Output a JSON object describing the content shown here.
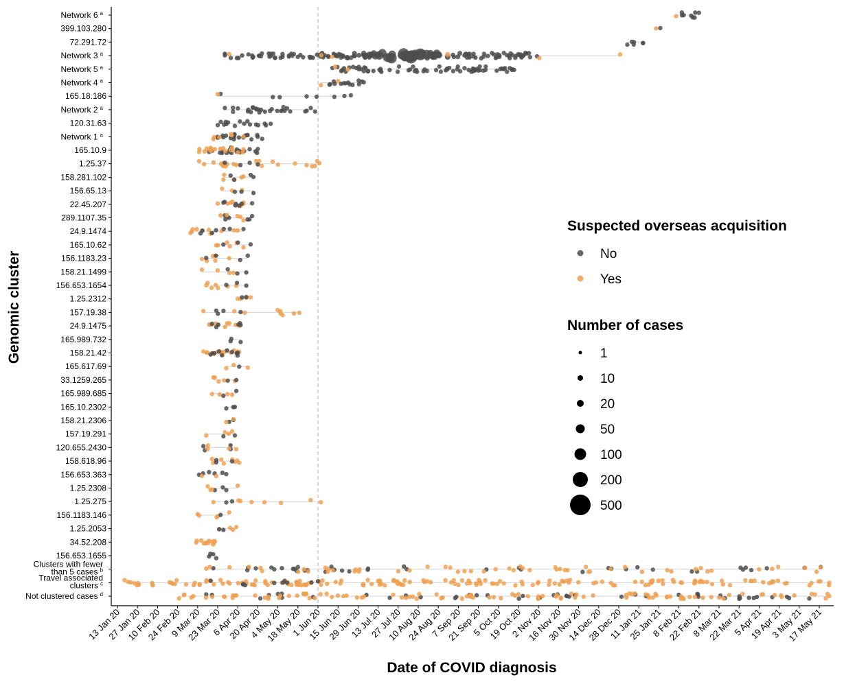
{
  "chart_data": {
    "type": "scatter",
    "xlabel": "Date of COVID diagnosis",
    "ylabel": "Genomic cluster",
    "x_range": [
      "2020-01-06",
      "2021-05-24"
    ],
    "x_tick_labels": [
      "13 Jan 20",
      "27 Jan 20",
      "10 Feb 20",
      "24 Feb 20",
      "9 Mar 20",
      "23 Mar 20",
      "6 Apr 20",
      "20 Apr 20",
      "4 May 20",
      "18 May 20",
      "1 Jun 20",
      "15 Jun 20",
      "29 Jun 20",
      "13 Jul 20",
      "27 Jul 20",
      "10 Aug 20",
      "24 Aug 20",
      "7 Sep 20",
      "21 Sep 20",
      "5 Oct 20",
      "19 Oct 20",
      "2 Nov 20",
      "16 Nov 20",
      "30 Nov 20",
      "14 Dec 20",
      "28 Dec 20",
      "11 Jan 21",
      "25 Jan 21",
      "8 Feb 21",
      "22 Feb 21",
      "8 Mar 21",
      "22 Mar 21",
      "5 Apr 21",
      "19 Apr 21",
      "3 May 21",
      "17 May 21"
    ],
    "reference_line_date": "2020-06-01",
    "grid": false,
    "legend_placement": "right",
    "colors": {
      "No": "#4d4d4d",
      "Yes": "#f0a050"
    },
    "legend": {
      "color_title": "Suspected overseas acquisition",
      "color_items": [
        "No",
        "Yes"
      ],
      "size_title": "Number of cases",
      "size_items": [
        1,
        10,
        20,
        50,
        100,
        200,
        500
      ]
    },
    "clusters": [
      {
        "label": "Network 6",
        "sup": "a",
        "groups": [
          {
            "acq": "No",
            "n": 8,
            "from": "2021-02-10",
            "to": "2021-02-22"
          },
          {
            "acq": "Yes",
            "n": 1,
            "from": "2021-02-06",
            "to": "2021-02-06"
          }
        ]
      },
      {
        "label": "399.103.280",
        "groups": [
          {
            "acq": "Yes",
            "n": 1,
            "from": "2021-01-23",
            "to": "2021-01-23"
          },
          {
            "acq": "No",
            "n": 1,
            "from": "2021-01-26",
            "to": "2021-01-26"
          }
        ]
      },
      {
        "label": "72.291.72",
        "groups": [
          {
            "acq": "No",
            "n": 6,
            "from": "2021-01-03",
            "to": "2021-01-14"
          }
        ]
      },
      {
        "label": "Network 3",
        "sup": "a",
        "groups": [
          {
            "acq": "No",
            "n": 160,
            "from": "2020-03-28",
            "to": "2020-11-01"
          },
          {
            "acq": "Yes",
            "n": 6,
            "from": "2020-03-31",
            "to": "2020-12-29"
          }
        ]
      },
      {
        "label": "Network 5",
        "sup": "a",
        "groups": [
          {
            "acq": "No",
            "n": 70,
            "from": "2020-06-11",
            "to": "2020-10-16"
          },
          {
            "acq": "Yes",
            "n": 2,
            "from": "2020-06-13",
            "to": "2020-06-22"
          }
        ]
      },
      {
        "label": "Network 4",
        "sup": "a",
        "groups": [
          {
            "acq": "No",
            "n": 14,
            "from": "2020-06-09",
            "to": "2020-07-03"
          },
          {
            "acq": "Yes",
            "n": 2,
            "from": "2020-06-03",
            "to": "2020-06-15"
          }
        ]
      },
      {
        "label": "165.18.186",
        "groups": [
          {
            "acq": "No",
            "n": 8,
            "from": "2020-03-25",
            "to": "2020-06-24"
          },
          {
            "acq": "Yes",
            "n": 1,
            "from": "2020-03-23",
            "to": "2020-03-23"
          }
        ]
      },
      {
        "label": "Network 2",
        "sup": "a",
        "groups": [
          {
            "acq": "No",
            "n": 28,
            "from": "2020-03-28",
            "to": "2020-05-30"
          }
        ]
      },
      {
        "label": "120.31.63",
        "groups": [
          {
            "acq": "No",
            "n": 16,
            "from": "2020-03-23",
            "to": "2020-04-29"
          }
        ]
      },
      {
        "label": "Network 1",
        "sup": "a",
        "groups": [
          {
            "acq": "No",
            "n": 22,
            "from": "2020-03-23",
            "to": "2020-04-23"
          },
          {
            "acq": "Yes",
            "n": 6,
            "from": "2020-03-20",
            "to": "2020-04-10"
          }
        ]
      },
      {
        "label": "165.10.9",
        "groups": [
          {
            "acq": "No",
            "n": 20,
            "from": "2020-03-17",
            "to": "2020-04-20"
          },
          {
            "acq": "Yes",
            "n": 18,
            "from": "2020-03-10",
            "to": "2020-04-10"
          }
        ]
      },
      {
        "label": "1.25.37",
        "groups": [
          {
            "acq": "Yes",
            "n": 22,
            "from": "2020-03-10",
            "to": "2020-06-02"
          },
          {
            "acq": "No",
            "n": 4,
            "from": "2020-03-28",
            "to": "2020-04-20"
          }
        ]
      },
      {
        "label": "158.281.102",
        "groups": [
          {
            "acq": "Yes",
            "n": 5,
            "from": "2020-03-27",
            "to": "2020-04-10"
          },
          {
            "acq": "No",
            "n": 4,
            "from": "2020-04-01",
            "to": "2020-04-17"
          }
        ]
      },
      {
        "label": "156.65.13",
        "groups": [
          {
            "acq": "Yes",
            "n": 3,
            "from": "2020-03-26",
            "to": "2020-04-09"
          },
          {
            "acq": "No",
            "n": 3,
            "from": "2020-04-04",
            "to": "2020-04-17"
          }
        ]
      },
      {
        "label": "22.45.207",
        "groups": [
          {
            "acq": "Yes",
            "n": 10,
            "from": "2020-03-23",
            "to": "2020-04-10"
          },
          {
            "acq": "No",
            "n": 7,
            "from": "2020-03-27",
            "to": "2020-04-16"
          }
        ]
      },
      {
        "label": "289.1107.35",
        "groups": [
          {
            "acq": "No",
            "n": 7,
            "from": "2020-03-28",
            "to": "2020-04-16"
          },
          {
            "acq": "Yes",
            "n": 5,
            "from": "2020-03-25",
            "to": "2020-04-10"
          }
        ]
      },
      {
        "label": "24.9.1474",
        "groups": [
          {
            "acq": "Yes",
            "n": 10,
            "from": "2020-03-04",
            "to": "2020-04-06"
          },
          {
            "acq": "No",
            "n": 7,
            "from": "2020-03-11",
            "to": "2020-04-10"
          }
        ]
      },
      {
        "label": "165.10.62",
        "groups": [
          {
            "acq": "Yes",
            "n": 6,
            "from": "2020-03-22",
            "to": "2020-04-10"
          },
          {
            "acq": "No",
            "n": 3,
            "from": "2020-03-27",
            "to": "2020-04-15"
          }
        ]
      },
      {
        "label": "156.1183.23",
        "groups": [
          {
            "acq": "Yes",
            "n": 6,
            "from": "2020-03-12",
            "to": "2020-03-31"
          },
          {
            "acq": "No",
            "n": 4,
            "from": "2020-03-15",
            "to": "2020-04-13"
          }
        ]
      },
      {
        "label": "158.21.1499",
        "groups": [
          {
            "acq": "Yes",
            "n": 4,
            "from": "2020-03-12",
            "to": "2020-04-03"
          },
          {
            "acq": "No",
            "n": 3,
            "from": "2020-03-30",
            "to": "2020-04-12"
          }
        ]
      },
      {
        "label": "156.653.1654",
        "groups": [
          {
            "acq": "Yes",
            "n": 7,
            "from": "2020-03-15",
            "to": "2020-04-05"
          },
          {
            "acq": "No",
            "n": 3,
            "from": "2020-03-29",
            "to": "2020-04-12"
          }
        ]
      },
      {
        "label": "1.25.2312",
        "groups": [
          {
            "acq": "Yes",
            "n": 4,
            "from": "2020-04-06",
            "to": "2020-04-15"
          },
          {
            "acq": "No",
            "n": 2,
            "from": "2020-04-09",
            "to": "2020-04-12"
          }
        ]
      },
      {
        "label": "157.19.38",
        "groups": [
          {
            "acq": "Yes",
            "n": 9,
            "from": "2020-03-13",
            "to": "2020-05-19"
          },
          {
            "acq": "No",
            "n": 4,
            "from": "2020-03-22",
            "to": "2020-04-08"
          }
        ]
      },
      {
        "label": "24.9.1475",
        "groups": [
          {
            "acq": "Yes",
            "n": 9,
            "from": "2020-03-17",
            "to": "2020-04-07"
          },
          {
            "acq": "No",
            "n": 6,
            "from": "2020-03-19",
            "to": "2020-04-08"
          }
        ]
      },
      {
        "label": "165.989.732",
        "groups": [
          {
            "acq": "No",
            "n": 3,
            "from": "2020-04-01",
            "to": "2020-04-08"
          }
        ]
      },
      {
        "label": "158.21.42",
        "groups": [
          {
            "acq": "Yes",
            "n": 16,
            "from": "2020-03-13",
            "to": "2020-04-07"
          },
          {
            "acq": "No",
            "n": 10,
            "from": "2020-03-18",
            "to": "2020-04-06"
          }
        ]
      },
      {
        "label": "165.617.69",
        "groups": [
          {
            "acq": "Yes",
            "n": 3,
            "from": "2020-03-29",
            "to": "2020-04-13"
          },
          {
            "acq": "No",
            "n": 1,
            "from": "2020-04-07",
            "to": "2020-04-07"
          }
        ]
      },
      {
        "label": "33.1259.265",
        "groups": [
          {
            "acq": "Yes",
            "n": 5,
            "from": "2020-03-20",
            "to": "2020-04-04"
          },
          {
            "acq": "No",
            "n": 2,
            "from": "2020-03-30",
            "to": "2020-04-05"
          }
        ]
      },
      {
        "label": "165.989.685",
        "groups": [
          {
            "acq": "Yes",
            "n": 4,
            "from": "2020-03-19",
            "to": "2020-04-02"
          },
          {
            "acq": "No",
            "n": 2,
            "from": "2020-03-27",
            "to": "2020-04-05"
          }
        ]
      },
      {
        "label": "165.10.2302",
        "groups": [
          {
            "acq": "No",
            "n": 3,
            "from": "2020-03-29",
            "to": "2020-04-04"
          }
        ]
      },
      {
        "label": "158.21.2306",
        "groups": [
          {
            "acq": "No",
            "n": 2,
            "from": "2020-03-31",
            "to": "2020-04-03"
          },
          {
            "acq": "Yes",
            "n": 2,
            "from": "2020-03-29",
            "to": "2020-04-03"
          }
        ]
      },
      {
        "label": "157.19.291",
        "groups": [
          {
            "acq": "Yes",
            "n": 4,
            "from": "2020-03-15",
            "to": "2020-04-02"
          },
          {
            "acq": "No",
            "n": 2,
            "from": "2020-03-27",
            "to": "2020-04-04"
          }
        ]
      },
      {
        "label": "120.655.2430",
        "groups": [
          {
            "acq": "No",
            "n": 4,
            "from": "2020-03-13",
            "to": "2020-04-01"
          },
          {
            "acq": "Yes",
            "n": 4,
            "from": "2020-03-16",
            "to": "2020-04-05"
          }
        ]
      },
      {
        "label": "158.618.96",
        "groups": [
          {
            "acq": "Yes",
            "n": 8,
            "from": "2020-03-19",
            "to": "2020-04-07"
          },
          {
            "acq": "No",
            "n": 3,
            "from": "2020-03-22",
            "to": "2020-04-02"
          }
        ]
      },
      {
        "label": "156.653.363",
        "groups": [
          {
            "acq": "No",
            "n": 6,
            "from": "2020-03-10",
            "to": "2020-03-29"
          },
          {
            "acq": "Yes",
            "n": 2,
            "from": "2020-03-12",
            "to": "2020-03-22"
          }
        ]
      },
      {
        "label": "1.25.2308",
        "groups": [
          {
            "acq": "No",
            "n": 3,
            "from": "2020-03-21",
            "to": "2020-03-29"
          },
          {
            "acq": "Yes",
            "n": 4,
            "from": "2020-03-16",
            "to": "2020-04-06"
          }
        ]
      },
      {
        "label": "1.25.275",
        "groups": [
          {
            "acq": "Yes",
            "n": 8,
            "from": "2020-03-20",
            "to": "2020-06-03"
          },
          {
            "acq": "No",
            "n": 2,
            "from": "2020-03-29",
            "to": "2020-04-02"
          }
        ]
      },
      {
        "label": "156.1183.146",
        "groups": [
          {
            "acq": "Yes",
            "n": 5,
            "from": "2020-03-09",
            "to": "2020-03-31"
          },
          {
            "acq": "No",
            "n": 1,
            "from": "2020-03-25",
            "to": "2020-03-25"
          }
        ]
      },
      {
        "label": "1.25.2053",
        "groups": [
          {
            "acq": "Yes",
            "n": 4,
            "from": "2020-03-24",
            "to": "2020-04-05"
          },
          {
            "acq": "No",
            "n": 2,
            "from": "2020-03-24",
            "to": "2020-03-27"
          }
        ]
      },
      {
        "label": "34.52.208",
        "groups": [
          {
            "acq": "Yes",
            "n": 12,
            "from": "2020-03-08",
            "to": "2020-03-21"
          }
        ]
      },
      {
        "label": "156.653.1655",
        "groups": [
          {
            "acq": "No",
            "n": 4,
            "from": "2020-03-17",
            "to": "2020-03-22"
          }
        ]
      },
      {
        "label": "Clusters with fewer\nthan 5 cases",
        "sup": "b",
        "groups": [
          {
            "acq": "No",
            "n": 40,
            "from": "2020-03-20",
            "to": "2021-05-18"
          },
          {
            "acq": "Yes",
            "n": 55,
            "from": "2020-03-15",
            "to": "2021-05-18"
          }
        ]
      },
      {
        "label": "Travel associated\nclusters",
        "sup": "c",
        "groups": [
          {
            "acq": "Yes",
            "n": 180,
            "from": "2020-01-18",
            "to": "2021-05-24"
          },
          {
            "acq": "No",
            "n": 10,
            "from": "2020-03-18",
            "to": "2020-06-01"
          }
        ]
      },
      {
        "label": "Not clustered cases",
        "sup": "d",
        "groups": [
          {
            "acq": "No",
            "n": 45,
            "from": "2020-03-15",
            "to": "2021-05-10"
          },
          {
            "acq": "Yes",
            "n": 110,
            "from": "2020-02-25",
            "to": "2021-05-24"
          }
        ]
      }
    ]
  }
}
